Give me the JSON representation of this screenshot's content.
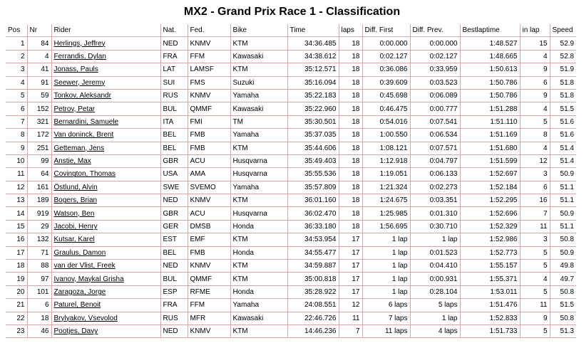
{
  "title": "MX2 - Grand Prix Race 1 - Classification",
  "table": {
    "headers": [
      "Pos",
      "Nr",
      "Rider",
      "Nat.",
      "Fed.",
      "Bike",
      "Time",
      "laps",
      "Diff. First",
      "Diff. Prev.",
      "Bestlaptime",
      "in lap",
      "Speed"
    ],
    "rows": [
      [
        "1",
        "84",
        "Herlings, Jeffrey",
        "NED",
        "KNMV",
        "KTM",
        "34:36.485",
        "18",
        "0:00.000",
        "0:00.000",
        "1:48.527",
        "15",
        "52.9"
      ],
      [
        "2",
        "4",
        "Ferrandis, Dylan",
        "FRA",
        "FFM",
        "Kawasaki",
        "34:38.612",
        "18",
        "0:02.127",
        "0:02.127",
        "1:48.665",
        "4",
        "52.8"
      ],
      [
        "3",
        "41",
        "Jonass, Pauls",
        "LAT",
        "LAMSF",
        "KTM",
        "35:12.571",
        "18",
        "0:36.086",
        "0:33.959",
        "1:50.613",
        "9",
        "51.9"
      ],
      [
        "4",
        "91",
        "Seewer, Jeremy",
        "SUI",
        "FMS",
        "Suzuki",
        "35:16.094",
        "18",
        "0:39.609",
        "0:03.523",
        "1:50.786",
        "6",
        "51.8"
      ],
      [
        "5",
        "59",
        "Tonkov, Aleksandr",
        "RUS",
        "KNMV",
        "Yamaha",
        "35:22.183",
        "18",
        "0:45.698",
        "0:06.089",
        "1:50.786",
        "9",
        "51.8"
      ],
      [
        "6",
        "152",
        "Petrov, Petar",
        "BUL",
        "QMMF",
        "Kawasaki",
        "35:22.960",
        "18",
        "0:46.475",
        "0:00.777",
        "1:51.288",
        "4",
        "51.5"
      ],
      [
        "7",
        "321",
        "Bernardini, Samuele",
        "ITA",
        "FMI",
        "TM",
        "35:30.501",
        "18",
        "0:54.016",
        "0:07.541",
        "1:51.110",
        "5",
        "51.6"
      ],
      [
        "8",
        "172",
        "Van doninck, Brent",
        "BEL",
        "FMB",
        "Yamaha",
        "35:37.035",
        "18",
        "1:00.550",
        "0:06.534",
        "1:51.169",
        "8",
        "51.6"
      ],
      [
        "9",
        "251",
        "Getteman, Jens",
        "BEL",
        "FMB",
        "KTM",
        "35:44.606",
        "18",
        "1:08.121",
        "0:07.571",
        "1:51.680",
        "4",
        "51.4"
      ],
      [
        "10",
        "99",
        "Anstie, Max",
        "GBR",
        "ACU",
        "Husqvarna",
        "35:49.403",
        "18",
        "1:12.918",
        "0:04.797",
        "1:51.599",
        "12",
        "51.4"
      ],
      [
        "11",
        "64",
        "Covington, Thomas",
        "USA",
        "AMA",
        "Husqvarna",
        "35:55.536",
        "18",
        "1:19.051",
        "0:06.133",
        "1:52.697",
        "3",
        "50.9"
      ],
      [
        "12",
        "161",
        "Östlund, Alvin",
        "SWE",
        "SVEMO",
        "Yamaha",
        "35:57.809",
        "18",
        "1:21.324",
        "0:02.273",
        "1:52.184",
        "6",
        "51.1"
      ],
      [
        "13",
        "189",
        "Bogers, Brian",
        "NED",
        "KNMV",
        "KTM",
        "36:01.160",
        "18",
        "1:24.675",
        "0:03.351",
        "1:52.295",
        "16",
        "51.1"
      ],
      [
        "14",
        "919",
        "Watson, Ben",
        "GBR",
        "ACU",
        "Husqvarna",
        "36:02.470",
        "18",
        "1:25.985",
        "0:01.310",
        "1:52.696",
        "7",
        "50.9"
      ],
      [
        "15",
        "29",
        "Jacobi, Henry",
        "GER",
        "DMSB",
        "Honda",
        "36:33.180",
        "18",
        "1:56.695",
        "0:30.710",
        "1:52.329",
        "11",
        "51.1"
      ],
      [
        "16",
        "132",
        "Kutsar, Karel",
        "EST",
        "EMF",
        "KTM",
        "34:53.954",
        "17",
        "1 lap",
        "1 lap",
        "1:52.986",
        "3",
        "50.8"
      ],
      [
        "17",
        "71",
        "Graulus, Damon",
        "BEL",
        "FMB",
        "Honda",
        "34:55.477",
        "17",
        "1 lap",
        "0:01.523",
        "1:52.773",
        "5",
        "50.9"
      ],
      [
        "18",
        "88",
        "van der Vlist, Freek",
        "NED",
        "KNMV",
        "KTM",
        "34:59.887",
        "17",
        "1 lap",
        "0:04.410",
        "1:55.157",
        "5",
        "49.8"
      ],
      [
        "19",
        "97",
        "Ivanov, Maykal Grisha",
        "BUL",
        "QMMF",
        "KTM",
        "35:00.818",
        "17",
        "1 lap",
        "0:00.931",
        "1:55.371",
        "4",
        "49.7"
      ],
      [
        "20",
        "101",
        "Zaragoza, Jorge",
        "ESP",
        "RFME",
        "Honda",
        "35:28.922",
        "17",
        "1 lap",
        "0:28.104",
        "1:53.011",
        "5",
        "50.8"
      ],
      [
        "21",
        "6",
        "Paturel, Benoit",
        "FRA",
        "FFM",
        "Yamaha",
        "24:08.551",
        "12",
        "6 laps",
        "5 laps",
        "1:51.476",
        "11",
        "51.5"
      ],
      [
        "22",
        "18",
        "Brylyakov, Vsevolod",
        "RUS",
        "MFR",
        "Kawasaki",
        "22:46.726",
        "11",
        "7 laps",
        "1 lap",
        "1:52.833",
        "9",
        "50.8"
      ],
      [
        "23",
        "46",
        "Pootjes, Davy",
        "NED",
        "KNMV",
        "KTM",
        "14:46.236",
        "7",
        "11 laps",
        "4 laps",
        "1:51.733",
        "5",
        "51.3"
      ]
    ]
  }
}
